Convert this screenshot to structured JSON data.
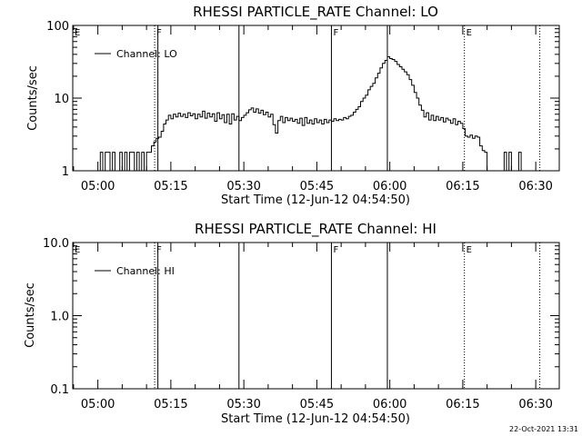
{
  "chart_data": [
    {
      "type": "line",
      "title": "RHESSI PARTICLE_RATE Channel: LO",
      "xlabel": "Start Time (12-Jun-12 04:54:50)",
      "ylabel": "Counts/sec",
      "yscale": "log",
      "ylim": [
        1,
        100
      ],
      "yticks": [
        1,
        10,
        100
      ],
      "ytick_labels": [
        "1",
        "10",
        "100"
      ],
      "xlim": [
        "04:54:50",
        "06:34:50"
      ],
      "xticks": [
        "05:00",
        "05:15",
        "05:30",
        "05:45",
        "06:00",
        "06:15",
        "06:30"
      ],
      "legend": {
        "label": "Channel: LO",
        "placement": "top-left"
      },
      "markers": [
        {
          "label": "E",
          "time": "04:54:50",
          "style": "none"
        },
        {
          "label": "F",
          "time": "05:11:40",
          "style": "dotted"
        },
        {
          "label": "",
          "time": "05:12:20",
          "style": "solid"
        },
        {
          "label": "",
          "time": "05:29:00",
          "style": "solid"
        },
        {
          "label": "F",
          "time": "05:48:00",
          "style": "solid"
        },
        {
          "label": "",
          "time": "05:59:30",
          "style": "solid"
        },
        {
          "label": "E",
          "time": "06:15:20",
          "style": "dotted"
        },
        {
          "label": "",
          "time": "06:30:50",
          "style": "dotted"
        }
      ],
      "series": [
        {
          "name": "Channel: LO",
          "points": [
            [
              "05:00:00",
              1
            ],
            [
              "05:00:30",
              1.8
            ],
            [
              "05:01:00",
              1
            ],
            [
              "05:01:30",
              1.8
            ],
            [
              "05:02:00",
              1.8
            ],
            [
              "05:02:30",
              1
            ],
            [
              "05:03:00",
              1.8
            ],
            [
              "05:03:30",
              1
            ],
            [
              "05:04:00",
              1
            ],
            [
              "05:04:30",
              1.8
            ],
            [
              "05:05:00",
              1
            ],
            [
              "05:05:30",
              1.8
            ],
            [
              "05:06:00",
              1
            ],
            [
              "05:06:30",
              1.8
            ],
            [
              "05:07:00",
              1.8
            ],
            [
              "05:07:30",
              1
            ],
            [
              "05:08:00",
              1.8
            ],
            [
              "05:08:30",
              1
            ],
            [
              "05:09:00",
              1.8
            ],
            [
              "05:09:30",
              1
            ],
            [
              "05:10:00",
              1.8
            ],
            [
              "05:10:30",
              1.8
            ],
            [
              "05:11:00",
              2.2
            ],
            [
              "05:11:30",
              2.5
            ],
            [
              "05:12:00",
              2.8
            ],
            [
              "05:12:30",
              2.9
            ],
            [
              "05:13:00",
              3.5
            ],
            [
              "05:13:30",
              4.4
            ],
            [
              "05:14:00",
              5.0
            ],
            [
              "05:14:30",
              5.8
            ],
            [
              "05:15:00",
              5.2
            ],
            [
              "05:15:30",
              6.0
            ],
            [
              "05:16:00",
              5.5
            ],
            [
              "05:16:30",
              6.2
            ],
            [
              "05:17:00",
              5.6
            ],
            [
              "05:17:30",
              6.0
            ],
            [
              "05:18:00",
              5.4
            ],
            [
              "05:18:30",
              6.3
            ],
            [
              "05:19:00",
              5.7
            ],
            [
              "05:19:30",
              6.1
            ],
            [
              "05:20:00",
              5.2
            ],
            [
              "05:20:30",
              6.0
            ],
            [
              "05:21:00",
              5.5
            ],
            [
              "05:21:30",
              6.6
            ],
            [
              "05:22:00",
              5.3
            ],
            [
              "05:22:30",
              6.2
            ],
            [
              "05:23:00",
              5.5
            ],
            [
              "05:23:30",
              6.1
            ],
            [
              "05:24:00",
              4.8
            ],
            [
              "05:24:30",
              6.3
            ],
            [
              "05:25:00",
              5.2
            ],
            [
              "05:25:30",
              5.9
            ],
            [
              "05:26:00",
              4.6
            ],
            [
              "05:26:30",
              6.0
            ],
            [
              "05:27:00",
              4.4
            ],
            [
              "05:27:30",
              6.1
            ],
            [
              "05:28:00",
              5.0
            ],
            [
              "05:28:30",
              5.6
            ],
            [
              "05:29:00",
              4.9
            ],
            [
              "05:29:30",
              5.4
            ],
            [
              "05:30:00",
              5.8
            ],
            [
              "05:30:30",
              6.3
            ],
            [
              "05:31:00",
              6.9
            ],
            [
              "05:31:30",
              7.3
            ],
            [
              "05:32:00",
              6.4
            ],
            [
              "05:32:30",
              7.1
            ],
            [
              "05:33:00",
              6.2
            ],
            [
              "05:33:30",
              6.8
            ],
            [
              "05:34:00",
              5.9
            ],
            [
              "05:34:30",
              6.4
            ],
            [
              "05:35:00",
              5.5
            ],
            [
              "05:35:30",
              6.0
            ],
            [
              "05:36:00",
              4.3
            ],
            [
              "05:36:30",
              3.3
            ],
            [
              "05:37:00",
              4.9
            ],
            [
              "05:37:30",
              5.6
            ],
            [
              "05:38:00",
              4.6
            ],
            [
              "05:38:30",
              5.4
            ],
            [
              "05:39:00",
              4.9
            ],
            [
              "05:39:30",
              5.3
            ],
            [
              "05:40:00",
              4.8
            ],
            [
              "05:40:30",
              5.1
            ],
            [
              "05:41:00",
              4.5
            ],
            [
              "05:41:30",
              5.3
            ],
            [
              "05:42:00",
              4.2
            ],
            [
              "05:42:30",
              5.4
            ],
            [
              "05:43:00",
              4.5
            ],
            [
              "05:43:30",
              5.0
            ],
            [
              "05:44:00",
              4.4
            ],
            [
              "05:44:30",
              5.2
            ],
            [
              "05:45:00",
              4.6
            ],
            [
              "05:45:30",
              5.0
            ],
            [
              "05:46:00",
              4.4
            ],
            [
              "05:46:30",
              5.1
            ],
            [
              "05:47:00",
              4.6
            ],
            [
              "05:47:30",
              5.0
            ],
            [
              "05:48:00",
              4.8
            ],
            [
              "05:48:30",
              5.2
            ],
            [
              "05:49:00",
              4.9
            ],
            [
              "05:49:30",
              5.1
            ],
            [
              "05:50:00",
              5.0
            ],
            [
              "05:50:30",
              5.4
            ],
            [
              "05:51:00",
              5.2
            ],
            [
              "05:51:30",
              5.6
            ],
            [
              "05:52:00",
              5.8
            ],
            [
              "05:52:30",
              6.4
            ],
            [
              "05:53:00",
              7.0
            ],
            [
              "05:53:30",
              7.6
            ],
            [
              "05:54:00",
              9.0
            ],
            [
              "05:54:30",
              10.0
            ],
            [
              "05:55:00",
              11.0
            ],
            [
              "05:55:30",
              13.0
            ],
            [
              "05:56:00",
              14.5
            ],
            [
              "05:56:30",
              16.0
            ],
            [
              "05:57:00",
              19.0
            ],
            [
              "05:57:30",
              22.0
            ],
            [
              "05:58:00",
              26.0
            ],
            [
              "05:58:30",
              30.0
            ],
            [
              "05:59:00",
              33.0
            ],
            [
              "05:59:30",
              37.0
            ],
            [
              "06:00:00",
              35.0
            ],
            [
              "06:00:30",
              34.0
            ],
            [
              "06:01:00",
              32.0
            ],
            [
              "06:01:30",
              29.0
            ],
            [
              "06:02:00",
              27.0
            ],
            [
              "06:02:30",
              25.0
            ],
            [
              "06:03:00",
              23.0
            ],
            [
              "06:03:30",
              21.0
            ],
            [
              "06:04:00",
              18.0
            ],
            [
              "06:04:30",
              15.0
            ],
            [
              "06:05:00",
              12.0
            ],
            [
              "06:05:30",
              10.0
            ],
            [
              "06:06:00",
              8.0
            ],
            [
              "06:06:30",
              6.8
            ],
            [
              "06:07:00",
              5.5
            ],
            [
              "06:07:30",
              6.3
            ],
            [
              "06:08:00",
              5.0
            ],
            [
              "06:08:30",
              5.8
            ],
            [
              "06:09:00",
              4.9
            ],
            [
              "06:09:30",
              5.6
            ],
            [
              "06:10:00",
              5.0
            ],
            [
              "06:10:30",
              5.4
            ],
            [
              "06:11:00",
              4.7
            ],
            [
              "06:11:30",
              5.3
            ],
            [
              "06:12:00",
              5.0
            ],
            [
              "06:12:30",
              4.5
            ],
            [
              "06:13:00",
              5.2
            ],
            [
              "06:13:30",
              4.3
            ],
            [
              "06:14:00",
              4.8
            ],
            [
              "06:14:30",
              4.5
            ],
            [
              "06:15:00",
              3.8
            ],
            [
              "06:15:30",
              3.0
            ],
            [
              "06:16:00",
              2.9
            ],
            [
              "06:16:30",
              3.1
            ],
            [
              "06:17:00",
              2.8
            ],
            [
              "06:17:30",
              3.0
            ],
            [
              "06:18:00",
              2.9
            ],
            [
              "06:18:30",
              2.2
            ],
            [
              "06:19:00",
              1.9
            ],
            [
              "06:19:30",
              1.8
            ],
            [
              "06:20:00",
              1.0
            ],
            [
              "06:20:30",
              1.0
            ],
            [
              "06:21:00",
              1.0
            ],
            [
              "06:21:30",
              1.0
            ],
            [
              "06:22:00",
              1.0
            ],
            [
              "06:22:30",
              1.0
            ],
            [
              "06:23:00",
              1.0
            ],
            [
              "06:23:30",
              1.8
            ],
            [
              "06:24:00",
              1.0
            ],
            [
              "06:24:30",
              1.8
            ],
            [
              "06:25:00",
              1.0
            ],
            [
              "06:25:30",
              1.0
            ],
            [
              "06:26:00",
              1.0
            ],
            [
              "06:26:30",
              1.8
            ],
            [
              "06:27:00",
              1.0
            ]
          ]
        }
      ]
    },
    {
      "type": "line",
      "title": "RHESSI PARTICLE_RATE Channel: HI",
      "xlabel": "Start Time (12-Jun-12 04:54:50)",
      "ylabel": "Counts/sec",
      "yscale": "log",
      "ylim": [
        0.1,
        10
      ],
      "yticks": [
        0.1,
        1,
        10
      ],
      "ytick_labels": [
        "0.1",
        "1.0",
        "10.0"
      ],
      "xlim": [
        "04:54:50",
        "06:34:50"
      ],
      "xticks": [
        "05:00",
        "05:15",
        "05:30",
        "05:45",
        "06:00",
        "06:15",
        "06:30"
      ],
      "legend": {
        "label": "Channel: HI",
        "placement": "top-left"
      },
      "markers": [
        {
          "label": "E",
          "time": "04:54:50",
          "style": "none"
        },
        {
          "label": "F",
          "time": "05:11:40",
          "style": "dotted"
        },
        {
          "label": "",
          "time": "05:12:20",
          "style": "solid"
        },
        {
          "label": "",
          "time": "05:29:00",
          "style": "solid"
        },
        {
          "label": "F",
          "time": "05:48:00",
          "style": "solid"
        },
        {
          "label": "",
          "time": "05:59:30",
          "style": "solid"
        },
        {
          "label": "E",
          "time": "06:15:20",
          "style": "dotted"
        },
        {
          "label": "",
          "time": "06:30:50",
          "style": "dotted"
        }
      ],
      "series": [
        {
          "name": "Channel: HI",
          "points": []
        }
      ]
    }
  ],
  "footer": {
    "timestamp": "22-Oct-2021 13:31"
  }
}
